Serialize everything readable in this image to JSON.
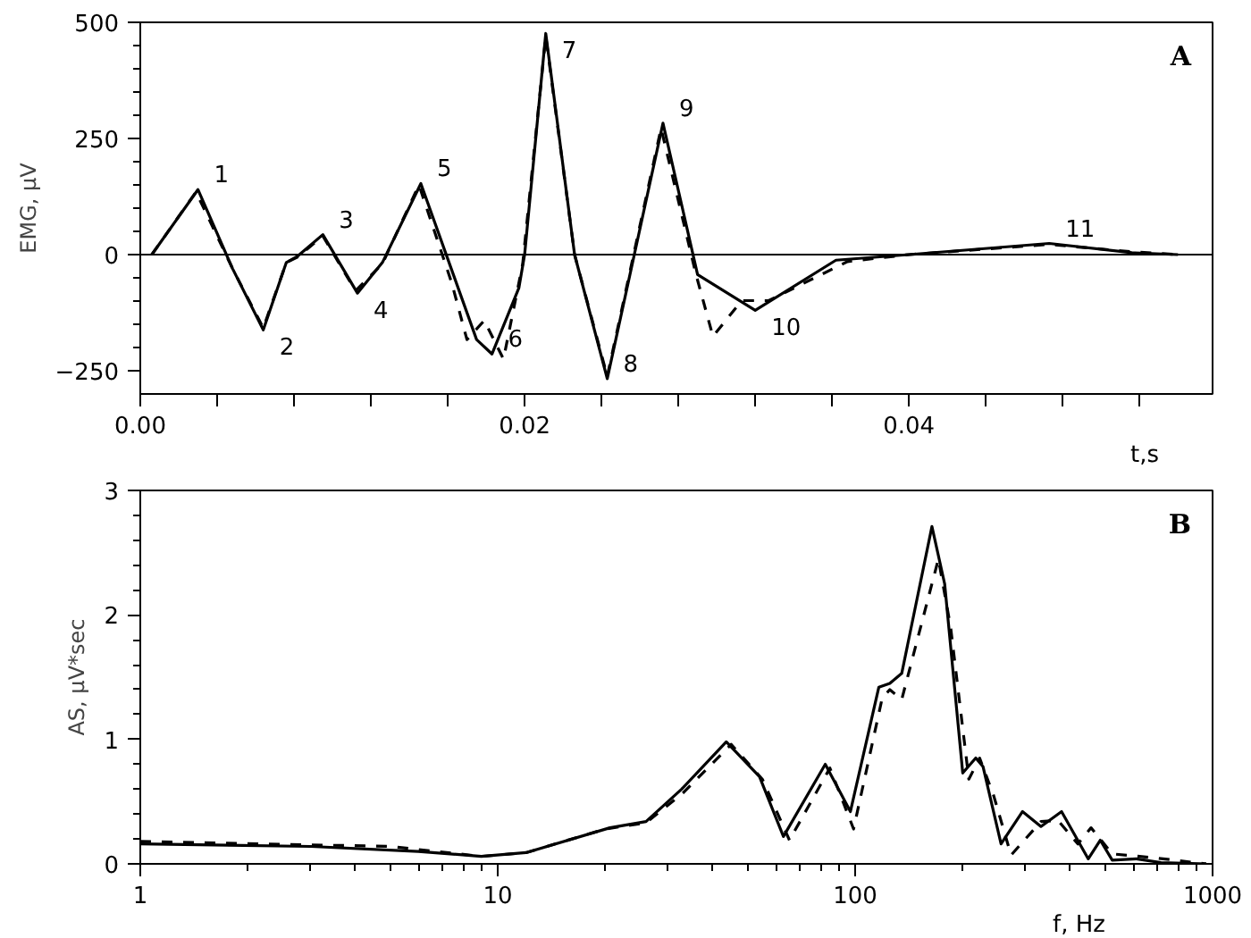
{
  "chart_data": [
    {
      "type": "line",
      "xlabel": "t,s",
      "ylabel": "EMG, μV",
      "xlim": [
        0,
        0.0558
      ],
      "ylim": [
        -300,
        500
      ],
      "xticks": [
        {
          "value": 0,
          "label": "0.00"
        },
        {
          "value": 0.004,
          "label": null
        },
        {
          "value": 0.008,
          "label": null
        },
        {
          "value": 0.012,
          "label": null
        },
        {
          "value": 0.016,
          "label": null
        },
        {
          "value": 0.02,
          "label": "0.02"
        },
        {
          "value": 0.024,
          "label": null
        },
        {
          "value": 0.028,
          "label": null
        },
        {
          "value": 0.032,
          "label": null
        },
        {
          "value": 0.036,
          "label": null
        },
        {
          "value": 0.04,
          "label": "0.04"
        },
        {
          "value": 0.044,
          "label": null
        },
        {
          "value": 0.048,
          "label": null
        },
        {
          "value": 0.052,
          "label": null
        }
      ],
      "yticks": [
        {
          "value": -250,
          "label": "−250"
        },
        0,
        250,
        500
      ],
      "grid": false,
      "ref_lines": [
        {
          "axis": "y",
          "value": 0,
          "color": "#000000",
          "line_style": "solid"
        }
      ],
      "series": [
        {
          "color": "#000000",
          "line_style": "solid",
          "x": [
            0.0006,
            0.003,
            0.0048,
            0.0064,
            0.0076,
            0.0082,
            0.0095,
            0.0113,
            0.0126,
            0.0146,
            0.0163,
            0.0175,
            0.0183,
            0.0197,
            0.02,
            0.0211,
            0.0226,
            0.0243,
            0.0272,
            0.029,
            0.032,
            0.0362,
            0.04,
            0.0473,
            0.0516,
            0.054
          ],
          "values": [
            0,
            140,
            -30,
            -162,
            -17,
            -3,
            43,
            -83,
            -17,
            153,
            -44,
            -183,
            -214,
            -72,
            0,
            476,
            0,
            -267,
            283,
            -43,
            -120,
            -12,
            0,
            24,
            4,
            0
          ]
        },
        {
          "color": "#000000",
          "line_style": "dashed",
          "x": [
            0.0006,
            0.0029,
            0.0048,
            0.0064,
            0.0076,
            0.0082,
            0.0095,
            0.0112,
            0.0126,
            0.0145,
            0.0162,
            0.017,
            0.0179,
            0.0189,
            0.0199,
            0.0211,
            0.0226,
            0.0243,
            0.0271,
            0.0289,
            0.0298,
            0.0313,
            0.0327,
            0.0368,
            0.04,
            0.0473,
            0.0516,
            0.054
          ],
          "values": [
            0,
            135,
            -30,
            -158,
            -17,
            -5,
            40,
            -78,
            -20,
            150,
            -60,
            -183,
            -142,
            -225,
            -20,
            470,
            0,
            -262,
            272,
            -40,
            -176,
            -99,
            -99,
            -15,
            0,
            22,
            6,
            0
          ]
        }
      ],
      "annotations": [
        {
          "text": "1",
          "x": 0.003,
          "y": 140
        },
        {
          "text": "2",
          "x": 0.0064,
          "y": -162
        },
        {
          "text": "3",
          "x": 0.0095,
          "y": 43
        },
        {
          "text": "4",
          "x": 0.0113,
          "y": -83
        },
        {
          "text": "5",
          "x": 0.0146,
          "y": 153
        },
        {
          "text": "6",
          "x": 0.0183,
          "y": -214
        },
        {
          "text": "7",
          "x": 0.0211,
          "y": 476
        },
        {
          "text": "8",
          "x": 0.0243,
          "y": -267
        },
        {
          "text": "9",
          "x": 0.0272,
          "y": 283
        },
        {
          "text": "10",
          "x": 0.032,
          "y": -120
        },
        {
          "text": "11",
          "x": 0.0473,
          "y": 24
        },
        "A"
      ]
    },
    {
      "type": "line",
      "xlabel": "f, Hz",
      "ylabel": "AS, μV*sec",
      "log": "x",
      "xlim": [
        1,
        1000
      ],
      "ylim": [
        0,
        3
      ],
      "xticks": [
        1,
        10,
        100,
        1000
      ],
      "yticks": [
        0,
        1,
        2,
        3
      ],
      "grid": false,
      "series": [
        {
          "color": "#000000",
          "line_style": "solid",
          "x": [
            1,
            3,
            6,
            9,
            12,
            20.6,
            26,
            32.7,
            43.6,
            54,
            63,
            82.5,
            97,
            116.5,
            125,
            135,
            164,
            178,
            200,
            217.5,
            228,
            256,
            294,
            331,
            378,
            449,
            485,
            524,
            612,
            717,
            960
          ],
          "values": [
            0.16,
            0.14,
            0.1,
            0.06,
            0.09,
            0.29,
            0.34,
            0.6,
            0.98,
            0.7,
            0.22,
            0.8,
            0.42,
            1.42,
            1.45,
            1.53,
            2.71,
            2.25,
            0.73,
            0.85,
            0.78,
            0.16,
            0.42,
            0.3,
            0.42,
            0.04,
            0.19,
            0.03,
            0.04,
            0.01,
            0
          ]
        },
        {
          "color": "#000000",
          "line_style": "dashed",
          "x": [
            1,
            5,
            9,
            12,
            20,
            26,
            33,
            45,
            55,
            65.5,
            85,
            99,
            119,
            125,
            135,
            171,
            185,
            208,
            223,
            244,
            273,
            331,
            369,
            420,
            457,
            524,
            680,
            960
          ],
          "values": [
            0.18,
            0.14,
            0.06,
            0.09,
            0.28,
            0.33,
            0.57,
            0.96,
            0.68,
            0.19,
            0.77,
            0.28,
            1.33,
            1.4,
            1.32,
            2.45,
            1.9,
            0.68,
            0.85,
            0.55,
            0.07,
            0.34,
            0.35,
            0.16,
            0.29,
            0.08,
            0.05,
            0
          ]
        }
      ],
      "annotations": [
        "B"
      ]
    }
  ]
}
